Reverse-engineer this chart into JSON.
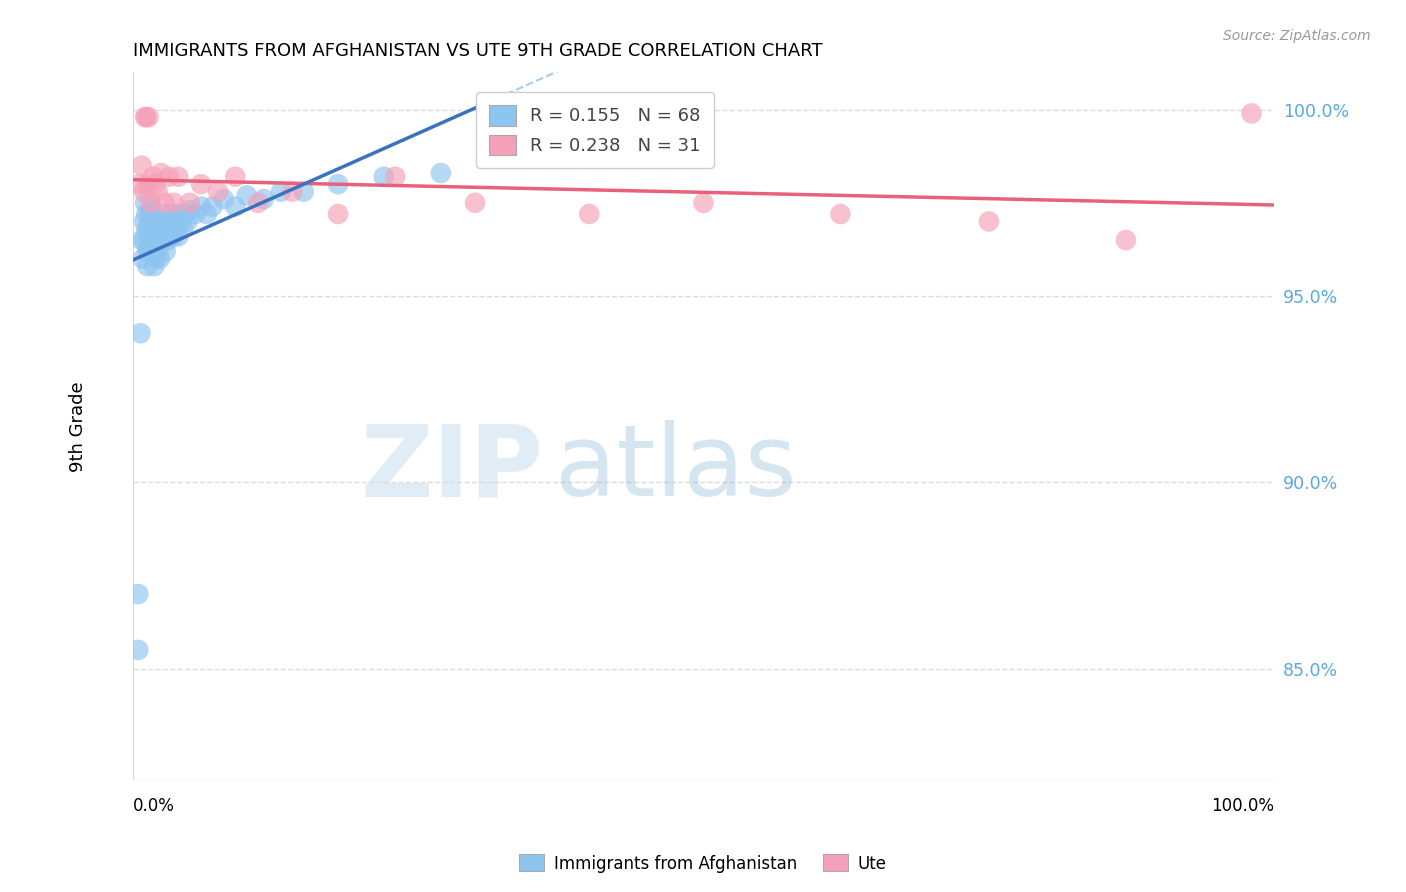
{
  "title": "IMMIGRANTS FROM AFGHANISTAN VS UTE 9TH GRADE CORRELATION CHART",
  "source": "Source: ZipAtlas.com",
  "ylabel": "9th Grade",
  "blue_R": 0.155,
  "blue_N": 68,
  "pink_R": 0.238,
  "pink_N": 31,
  "blue_color": "#8EC4F0",
  "pink_color": "#F5A0B8",
  "blue_line_color": "#3A72C0",
  "pink_line_color": "#E8607A",
  "dashed_line_color": "#A8CCE8",
  "grid_color": "#DCDCDC",
  "right_axis_color": "#5BA8E0",
  "background": "#FFFFFF",
  "xlim": [
    0.0,
    1.0
  ],
  "ylim": [
    0.82,
    1.01
  ],
  "yticks": [
    0.85,
    0.9,
    0.95,
    1.0
  ],
  "ytick_labels": [
    "85.0%",
    "90.0%",
    "95.0%",
    "100.0%"
  ],
  "blue_points_x": [
    0.005,
    0.005,
    0.007,
    0.008,
    0.009,
    0.01,
    0.01,
    0.011,
    0.012,
    0.012,
    0.013,
    0.013,
    0.014,
    0.014,
    0.015,
    0.015,
    0.016,
    0.016,
    0.017,
    0.017,
    0.018,
    0.018,
    0.019,
    0.019,
    0.02,
    0.02,
    0.021,
    0.021,
    0.022,
    0.022,
    0.023,
    0.024,
    0.024,
    0.025,
    0.025,
    0.026,
    0.027,
    0.028,
    0.029,
    0.03,
    0.031,
    0.032,
    0.033,
    0.034,
    0.035,
    0.036,
    0.037,
    0.038,
    0.04,
    0.04,
    0.042,
    0.044,
    0.046,
    0.048,
    0.05,
    0.055,
    0.06,
    0.065,
    0.07,
    0.08,
    0.09,
    0.1,
    0.115,
    0.13,
    0.15,
    0.18,
    0.22,
    0.27
  ],
  "blue_points_y": [
    0.87,
    0.855,
    0.94,
    0.965,
    0.96,
    0.97,
    0.965,
    0.975,
    0.972,
    0.968,
    0.962,
    0.958,
    0.968,
    0.962,
    0.972,
    0.966,
    0.97,
    0.964,
    0.973,
    0.967,
    0.97,
    0.965,
    0.963,
    0.958,
    0.968,
    0.962,
    0.966,
    0.96,
    0.97,
    0.964,
    0.968,
    0.965,
    0.96,
    0.97,
    0.964,
    0.968,
    0.972,
    0.966,
    0.962,
    0.968,
    0.965,
    0.97,
    0.966,
    0.968,
    0.972,
    0.966,
    0.97,
    0.968,
    0.972,
    0.966,
    0.97,
    0.968,
    0.972,
    0.97,
    0.973,
    0.972,
    0.974,
    0.972,
    0.974,
    0.976,
    0.974,
    0.977,
    0.976,
    0.978,
    0.978,
    0.98,
    0.982,
    0.983
  ],
  "pink_points_x": [
    0.006,
    0.008,
    0.01,
    0.011,
    0.012,
    0.013,
    0.014,
    0.016,
    0.018,
    0.02,
    0.022,
    0.025,
    0.028,
    0.032,
    0.036,
    0.04,
    0.05,
    0.06,
    0.075,
    0.09,
    0.11,
    0.14,
    0.18,
    0.23,
    0.3,
    0.4,
    0.5,
    0.62,
    0.75,
    0.87,
    0.98
  ],
  "pink_points_y": [
    0.98,
    0.985,
    0.978,
    0.998,
    0.998,
    0.98,
    0.998,
    0.975,
    0.982,
    0.98,
    0.978,
    0.983,
    0.975,
    0.982,
    0.975,
    0.982,
    0.975,
    0.98,
    0.978,
    0.982,
    0.975,
    0.978,
    0.972,
    0.982,
    0.975,
    0.972,
    0.975,
    0.972,
    0.97,
    0.965,
    0.999
  ]
}
